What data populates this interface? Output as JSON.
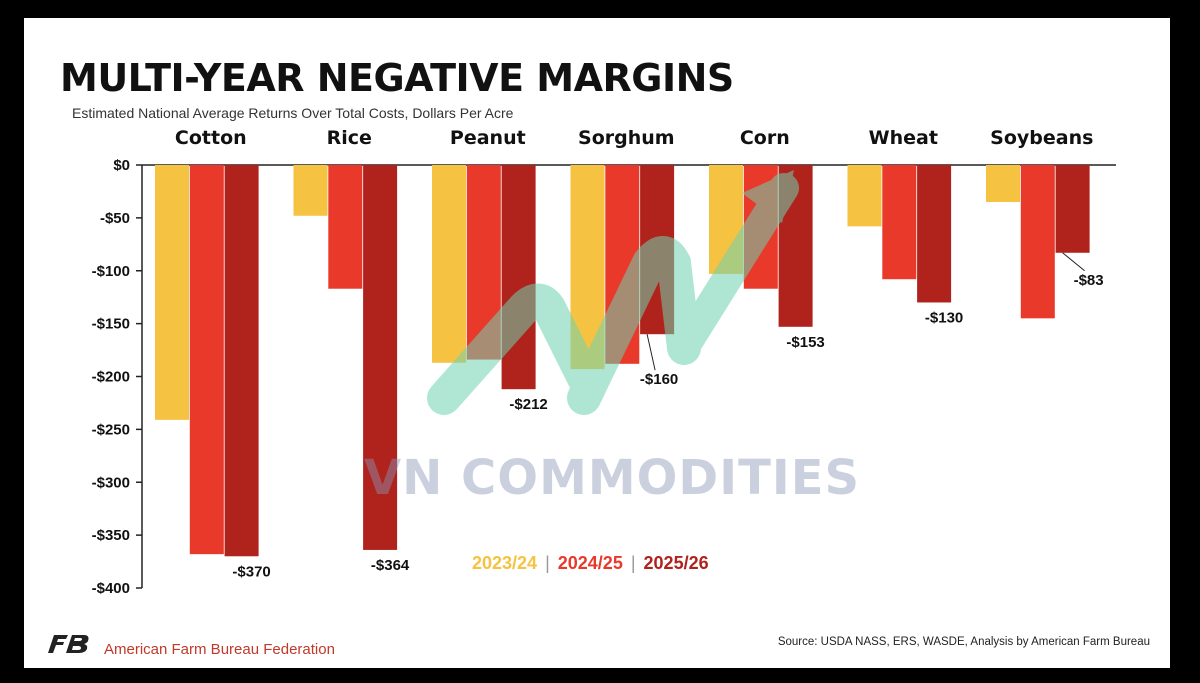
{
  "title": "MULTI-YEAR NEGATIVE MARGINS",
  "subtitle": "Estimated National Average Returns Over Total Costs, Dollars Per Acre",
  "footer": {
    "org_name": "American Farm Bureau Federation",
    "source": "Source: USDA NASS, ERS, WASDE, Analysis by American Farm Bureau"
  },
  "watermark": "VN COMMODITIES",
  "legend_separator": "|",
  "colors": {
    "2023/24": "#f5c242",
    "2024/25": "#e8392a",
    "2025/26": "#b0221c",
    "watermark_arrow": "#6fd3b0"
  },
  "chart_data": {
    "type": "bar",
    "title": "MULTI-YEAR NEGATIVE MARGINS",
    "subtitle": "Estimated National Average Returns Over Total Costs, Dollars Per Acre",
    "categories": [
      "Cotton",
      "Rice",
      "Peanut",
      "Sorghum",
      "Corn",
      "Wheat",
      "Soybeans"
    ],
    "series": [
      {
        "name": "2023/24",
        "values": [
          -241,
          -48,
          -187,
          -193,
          -103,
          -58,
          -35
        ]
      },
      {
        "name": "2024/25",
        "values": [
          -368,
          -117,
          -184,
          -188,
          -117,
          -108,
          -145
        ]
      },
      {
        "name": "2025/26",
        "values": [
          -370,
          -364,
          -212,
          -160,
          -153,
          -130,
          -83
        ]
      }
    ],
    "data_labels": [
      "-$370",
      "-$364",
      "-$212",
      "-$160",
      "-$153",
      "-$130",
      "-$83"
    ],
    "ylim": [
      -400,
      0
    ],
    "yticks": [
      0,
      -50,
      -100,
      -150,
      -200,
      -250,
      -300,
      -350,
      -400
    ],
    "ytick_labels": [
      "$0",
      "-$50",
      "-$100",
      "-$150",
      "-$200",
      "-$250",
      "-$300",
      "-$350",
      "-$400"
    ],
    "category_position": "top",
    "legend_position": "bottom-center",
    "grid": false
  }
}
